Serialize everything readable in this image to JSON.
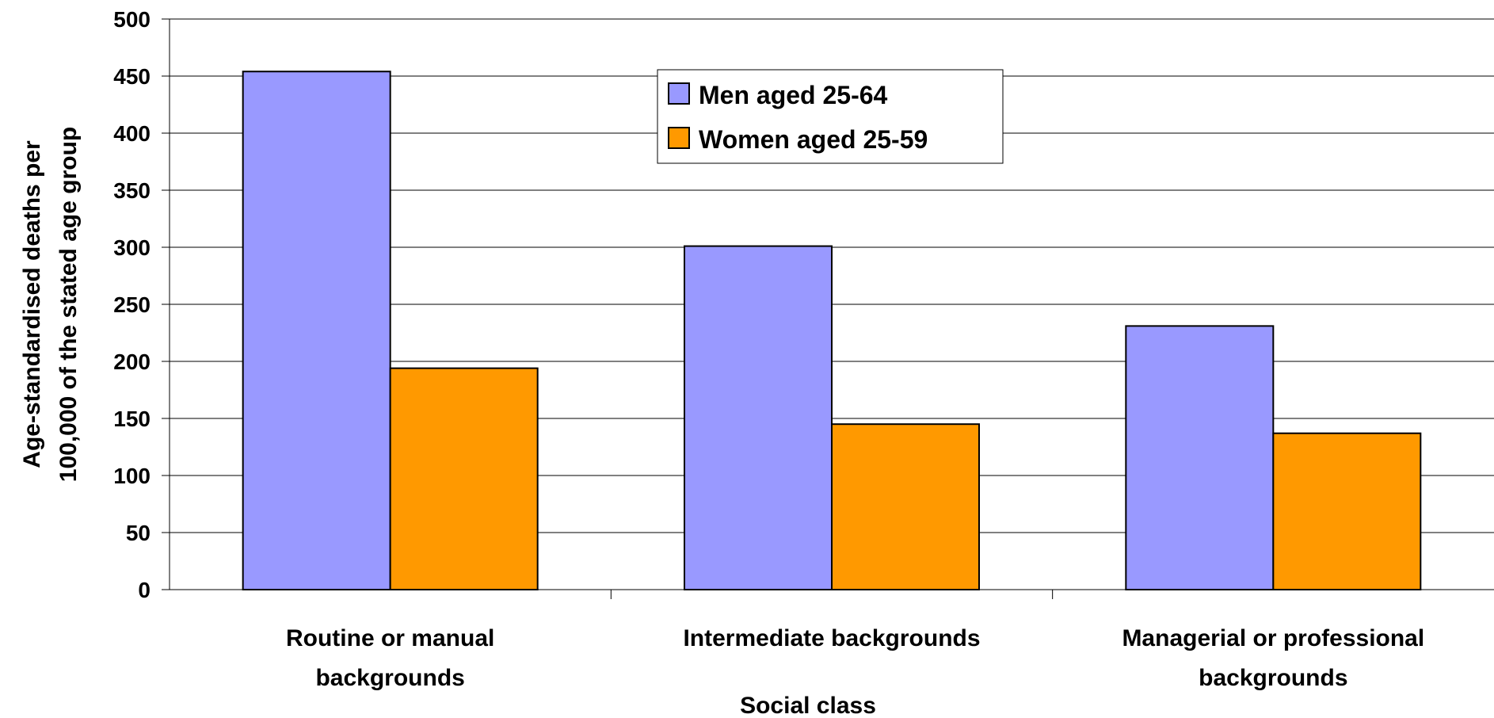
{
  "chart_data": {
    "type": "bar",
    "categories": [
      [
        "Routine or manual",
        "backgrounds"
      ],
      [
        "Intermediate backgrounds"
      ],
      [
        "Managerial or professional",
        "backgrounds"
      ]
    ],
    "series": [
      {
        "name": "Men aged 25-64",
        "values": [
          454,
          301,
          231
        ],
        "color": "#9999ff"
      },
      {
        "name": "Women aged 25-59",
        "values": [
          194,
          145,
          137
        ],
        "color": "#ff9900"
      }
    ],
    "xlabel": "Social class",
    "ylabel": [
      "Age-standardised deaths per",
      "100,000 of the stated age group"
    ],
    "ylim": [
      0,
      500
    ],
    "yticks": [
      0,
      50,
      100,
      150,
      200,
      250,
      300,
      350,
      400,
      450,
      500
    ],
    "grid": true,
    "legend_position": "top-center"
  }
}
